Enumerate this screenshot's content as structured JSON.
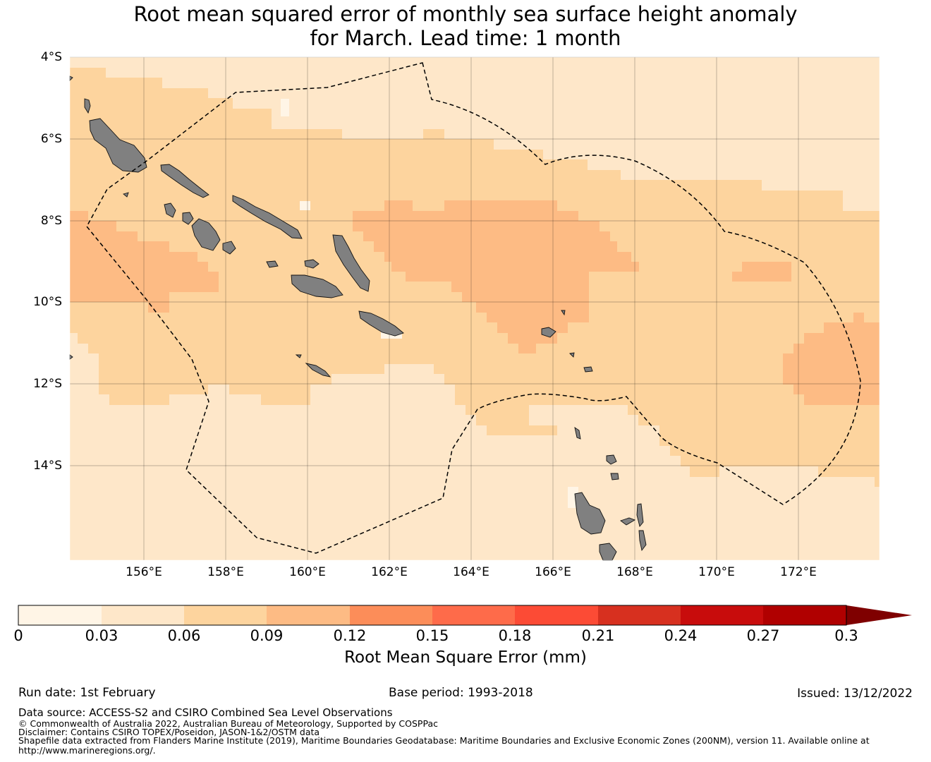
{
  "title": {
    "line1": "Root mean squared error of monthly sea surface height anomaly",
    "line2": "for March. Lead time: 1 month"
  },
  "map": {
    "lat_ticks": [
      "4°S",
      "6°S",
      "8°S",
      "10°S",
      "12°S",
      "14°S"
    ],
    "lon_ticks": [
      "156°E",
      "158°E",
      "160°E",
      "162°E",
      "164°E",
      "166°E",
      "168°E",
      "170°E",
      "172°E"
    ],
    "lon_range": [
      154.2,
      174
    ],
    "lat_range": [
      -16.3,
      -4
    ],
    "land_color": "#808080",
    "boundary_style": "black dashed line (EEZ)"
  },
  "colorbar": {
    "tick_labels": [
      "0",
      "0.03",
      "0.06",
      "0.09",
      "0.12",
      "0.15",
      "0.18",
      "0.21",
      "0.24",
      "0.27",
      "0.3"
    ],
    "colors": [
      "#fff5e6",
      "#fee7c9",
      "#fdd49e",
      "#fdbb84",
      "#fc8d59",
      "#fe6b4a",
      "#fc4b35",
      "#d7301f",
      "#c80c0c",
      "#b00000",
      "#7f0000"
    ],
    "extend": "max",
    "label": "Root Mean Square Error (mm)"
  },
  "footer": {
    "run_date": "Run date: 1st February",
    "base_period": "Base period: 1993-2018",
    "issued": "Issued: 13/12/2022",
    "data_source": "Data source: ACCESS-S2 and CSIRO Combined Sea Level Observations",
    "copyright": "© Commonwealth of Australia 2022, Australian Bureau of Meteorology, Supported by COSPPac",
    "disclaimer": "Disclaimer: Contains CSIRO TOPEX/Poseidon, JASON-1&2/OSTM data",
    "shapefile_line1": "Shapefile data extracted from Flanders Marine Institute (2019), Maritime Boundaries Geodatabase: Maritime Boundaries and Exclusive Economic Zones (200NM), version 11. Available online at",
    "shapefile_line2": "http://www.marineregions.org/."
  }
}
